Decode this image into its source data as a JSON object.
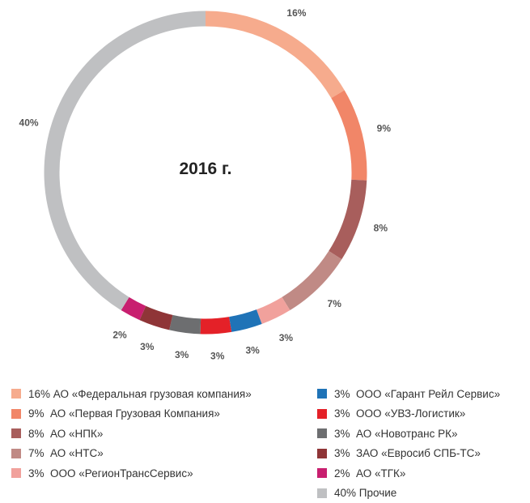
{
  "chart_data": {
    "type": "pie",
    "title": "2016 г.",
    "slices": [
      {
        "label": "16%",
        "value": 16,
        "color": "#f6ab8d"
      },
      {
        "label": "9%",
        "value": 9,
        "color": "#f18668"
      },
      {
        "label": "8%",
        "value": 8,
        "color": "#a85e5c"
      },
      {
        "label": "7%",
        "value": 7,
        "color": "#c08a85"
      },
      {
        "label": "3%",
        "value": 3,
        "color": "#f1a19c"
      },
      {
        "label": "3%",
        "value": 3,
        "color": "#1f73b7"
      },
      {
        "label": "3%",
        "value": 3,
        "color": "#e42128"
      },
      {
        "label": "3%",
        "value": 3,
        "color": "#6d6e70"
      },
      {
        "label": "3%",
        "value": 3,
        "color": "#8f3537"
      },
      {
        "label": "2%",
        "value": 2,
        "color": "#c81f6f"
      },
      {
        "label": "40%",
        "value": 40,
        "color": "#bfc0c2"
      }
    ]
  },
  "legend": {
    "left": [
      {
        "pct": "16%",
        "name": "АО «Федеральная грузовая компания»",
        "color": "#f6ab8d"
      },
      {
        "pct": "9%",
        "name": "АО «Первая Грузовая Компания»",
        "color": "#f18668"
      },
      {
        "pct": "8%",
        "name": "АО «НПК»",
        "color": "#a85e5c"
      },
      {
        "pct": "7%",
        "name": "АО «НТС»",
        "color": "#c08a85"
      },
      {
        "pct": "3%",
        "name": "ООО «РегионТрансСервис»",
        "color": "#f1a19c"
      }
    ],
    "right": [
      {
        "pct": "3%",
        "name": "ООО «Гарант Рейл Сервис»",
        "color": "#1f73b7"
      },
      {
        "pct": "3%",
        "name": "ООО «УВЗ-Логистик»",
        "color": "#e42128"
      },
      {
        "pct": "3%",
        "name": "АО «Новотранс РК»",
        "color": "#6d6e70"
      },
      {
        "pct": "3%",
        "name": "ЗАО «Евросиб СПБ-ТС»",
        "color": "#8f3537"
      },
      {
        "pct": "2%",
        "name": "АО «ТГК»",
        "color": "#c81f6f"
      },
      {
        "pct": "40%",
        "name": "Прочие",
        "color": "#bfc0c2"
      }
    ]
  }
}
